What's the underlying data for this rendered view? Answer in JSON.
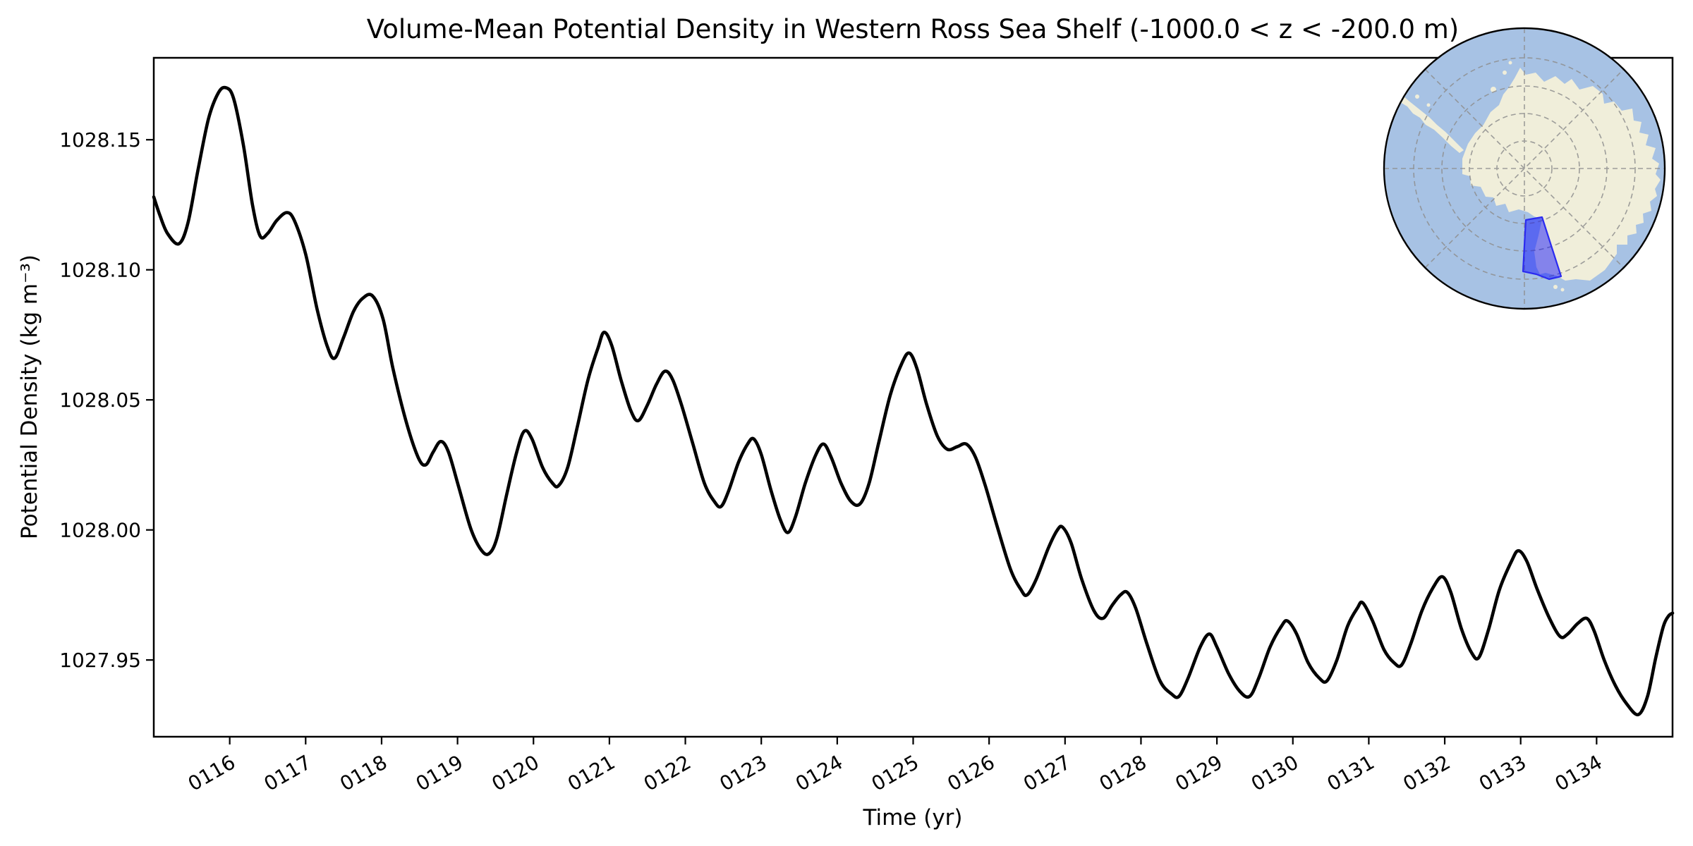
{
  "figure": {
    "background": "#ffffff",
    "frame_color": "#000000"
  },
  "chart_data": {
    "type": "line",
    "title": "Volume-Mean Potential Density in Western Ross Sea Shelf (-1000.0 < z < -200.0 m)",
    "xlabel": "Time (yr)",
    "ylabel": "Potential Density (kg m⁻³)",
    "xlim": [
      115.0,
      135.0
    ],
    "ylim": [
      1027.9205,
      1028.1815
    ],
    "grid": false,
    "legend": "none",
    "line_color": "#000000",
    "line_width": 4.6,
    "x_ticks": {
      "values": [
        116,
        117,
        118,
        119,
        120,
        121,
        122,
        123,
        124,
        125,
        126,
        127,
        128,
        129,
        130,
        131,
        132,
        133,
        134
      ],
      "labels": [
        "0116",
        "0117",
        "0118",
        "0119",
        "0120",
        "0121",
        "0122",
        "0123",
        "0124",
        "0125",
        "0126",
        "0127",
        "0128",
        "0129",
        "0130",
        "0131",
        "0132",
        "0133",
        "0134"
      ],
      "rotation_deg": 30
    },
    "y_ticks": {
      "values": [
        1027.95,
        1028.0,
        1028.05,
        1028.1,
        1028.15
      ],
      "labels": [
        "1027.95",
        "1028.00",
        "1028.05",
        "1028.10",
        "1028.15"
      ]
    },
    "series": [
      {
        "name": "volume_mean_potential_density",
        "units": "kg m-3",
        "points": [
          [
            115.0,
            1028.128
          ],
          [
            115.08,
            1028.121
          ],
          [
            115.18,
            1028.114
          ],
          [
            115.33,
            1028.11
          ],
          [
            115.45,
            1028.118
          ],
          [
            115.58,
            1028.138
          ],
          [
            115.72,
            1028.158
          ],
          [
            115.85,
            1028.168
          ],
          [
            115.95,
            1028.17
          ],
          [
            116.05,
            1028.166
          ],
          [
            116.18,
            1028.148
          ],
          [
            116.3,
            1028.125
          ],
          [
            116.4,
            1028.113
          ],
          [
            116.5,
            1028.114
          ],
          [
            116.62,
            1028.119
          ],
          [
            116.75,
            1028.122
          ],
          [
            116.85,
            1028.119
          ],
          [
            117.0,
            1028.106
          ],
          [
            117.15,
            1028.085
          ],
          [
            117.28,
            1028.071
          ],
          [
            117.38,
            1028.066
          ],
          [
            117.5,
            1028.074
          ],
          [
            117.63,
            1028.084
          ],
          [
            117.75,
            1028.089
          ],
          [
            117.88,
            1028.09
          ],
          [
            118.02,
            1028.081
          ],
          [
            118.15,
            1028.062
          ],
          [
            118.32,
            1028.042
          ],
          [
            118.48,
            1028.028
          ],
          [
            118.58,
            1028.025
          ],
          [
            118.68,
            1028.03
          ],
          [
            118.78,
            1028.034
          ],
          [
            118.88,
            1028.03
          ],
          [
            119.02,
            1028.016
          ],
          [
            119.18,
            1028.0
          ],
          [
            119.32,
            1027.992
          ],
          [
            119.42,
            1027.991
          ],
          [
            119.52,
            1027.997
          ],
          [
            119.65,
            1028.014
          ],
          [
            119.78,
            1028.03
          ],
          [
            119.88,
            1028.038
          ],
          [
            119.98,
            1028.035
          ],
          [
            120.12,
            1028.024
          ],
          [
            120.25,
            1028.018
          ],
          [
            120.33,
            1028.017
          ],
          [
            120.45,
            1028.024
          ],
          [
            120.58,
            1028.04
          ],
          [
            120.72,
            1028.058
          ],
          [
            120.85,
            1028.07
          ],
          [
            120.93,
            1028.076
          ],
          [
            121.03,
            1028.071
          ],
          [
            121.15,
            1028.058
          ],
          [
            121.28,
            1028.046
          ],
          [
            121.38,
            1028.042
          ],
          [
            121.5,
            1028.048
          ],
          [
            121.62,
            1028.056
          ],
          [
            121.73,
            1028.061
          ],
          [
            121.83,
            1028.058
          ],
          [
            121.95,
            1028.048
          ],
          [
            122.1,
            1028.033
          ],
          [
            122.25,
            1028.018
          ],
          [
            122.38,
            1028.011
          ],
          [
            122.47,
            1028.009
          ],
          [
            122.57,
            1028.015
          ],
          [
            122.7,
            1028.026
          ],
          [
            122.82,
            1028.033
          ],
          [
            122.9,
            1028.035
          ],
          [
            123.0,
            1028.029
          ],
          [
            123.13,
            1028.015
          ],
          [
            123.25,
            1028.004
          ],
          [
            123.35,
            1027.999
          ],
          [
            123.45,
            1028.005
          ],
          [
            123.58,
            1028.018
          ],
          [
            123.72,
            1028.029
          ],
          [
            123.82,
            1028.033
          ],
          [
            123.92,
            1028.028
          ],
          [
            124.05,
            1028.018
          ],
          [
            124.18,
            1028.011
          ],
          [
            124.3,
            1028.01
          ],
          [
            124.42,
            1028.018
          ],
          [
            124.55,
            1028.034
          ],
          [
            124.7,
            1028.052
          ],
          [
            124.85,
            1028.064
          ],
          [
            124.95,
            1028.068
          ],
          [
            125.05,
            1028.062
          ],
          [
            125.18,
            1028.048
          ],
          [
            125.32,
            1028.036
          ],
          [
            125.45,
            1028.031
          ],
          [
            125.58,
            1028.032
          ],
          [
            125.7,
            1028.033
          ],
          [
            125.82,
            1028.028
          ],
          [
            125.95,
            1028.017
          ],
          [
            126.1,
            1028.002
          ],
          [
            126.28,
            1027.985
          ],
          [
            126.42,
            1027.977
          ],
          [
            126.5,
            1027.975
          ],
          [
            126.62,
            1027.981
          ],
          [
            126.78,
            1027.993
          ],
          [
            126.9,
            1028.0
          ],
          [
            126.97,
            1028.001
          ],
          [
            127.08,
            1027.995
          ],
          [
            127.22,
            1027.981
          ],
          [
            127.38,
            1027.969
          ],
          [
            127.5,
            1027.966
          ],
          [
            127.62,
            1027.971
          ],
          [
            127.73,
            1027.975
          ],
          [
            127.82,
            1027.976
          ],
          [
            127.93,
            1027.97
          ],
          [
            128.08,
            1027.956
          ],
          [
            128.25,
            1027.942
          ],
          [
            128.4,
            1027.937
          ],
          [
            128.5,
            1027.936
          ],
          [
            128.62,
            1027.943
          ],
          [
            128.78,
            1027.955
          ],
          [
            128.9,
            1027.96
          ],
          [
            129.0,
            1027.955
          ],
          [
            129.15,
            1027.945
          ],
          [
            129.3,
            1027.938
          ],
          [
            129.43,
            1027.936
          ],
          [
            129.55,
            1027.943
          ],
          [
            129.7,
            1027.955
          ],
          [
            129.85,
            1027.963
          ],
          [
            129.93,
            1027.965
          ],
          [
            130.05,
            1027.96
          ],
          [
            130.2,
            1027.949
          ],
          [
            130.35,
            1027.943
          ],
          [
            130.45,
            1027.942
          ],
          [
            130.58,
            1027.95
          ],
          [
            130.72,
            1027.963
          ],
          [
            130.85,
            1027.97
          ],
          [
            130.92,
            1027.972
          ],
          [
            131.05,
            1027.965
          ],
          [
            131.2,
            1027.954
          ],
          [
            131.33,
            1027.949
          ],
          [
            131.43,
            1027.948
          ],
          [
            131.55,
            1027.956
          ],
          [
            131.7,
            1027.969
          ],
          [
            131.85,
            1027.978
          ],
          [
            131.97,
            1027.982
          ],
          [
            132.08,
            1027.976
          ],
          [
            132.22,
            1027.962
          ],
          [
            132.35,
            1027.953
          ],
          [
            132.45,
            1027.951
          ],
          [
            132.58,
            1027.962
          ],
          [
            132.72,
            1027.977
          ],
          [
            132.88,
            1027.988
          ],
          [
            132.97,
            1027.992
          ],
          [
            133.08,
            1027.988
          ],
          [
            133.22,
            1027.977
          ],
          [
            133.38,
            1027.966
          ],
          [
            133.52,
            1027.959
          ],
          [
            133.62,
            1027.96
          ],
          [
            133.75,
            1027.964
          ],
          [
            133.87,
            1027.966
          ],
          [
            133.97,
            1027.961
          ],
          [
            134.1,
            1027.95
          ],
          [
            134.25,
            1027.94
          ],
          [
            134.4,
            1027.933
          ],
          [
            134.55,
            1027.929
          ],
          [
            134.67,
            1027.936
          ],
          [
            134.78,
            1027.951
          ],
          [
            134.88,
            1027.963
          ],
          [
            134.95,
            1027.967
          ],
          [
            135.0,
            1027.968
          ]
        ]
      }
    ]
  },
  "inset_map": {
    "name": "antarctica-south-polar-view",
    "ocean_color": "#a7c2e4",
    "land_color": "#f0eeda",
    "graticule_color": "#8f8f8f",
    "border_color": "#000000",
    "highlight": {
      "name": "western-ross-sea-shelf-region",
      "fill_color": "#0000ff",
      "fill_opacity": 0.45,
      "edge_color": "#2b2bf0"
    }
  }
}
